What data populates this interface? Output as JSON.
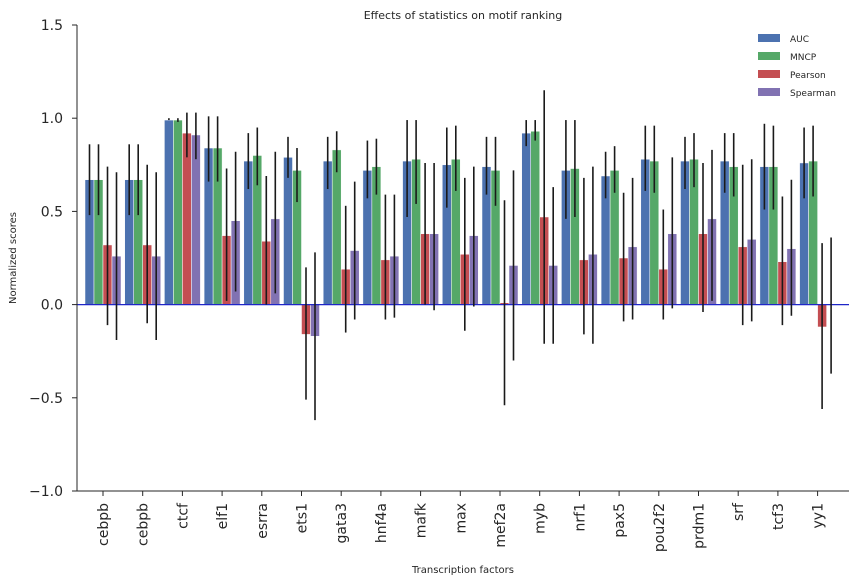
{
  "chart_data": {
    "type": "bar",
    "title": "Effects of statistics on motif ranking",
    "xlabel": "Transcription factors",
    "ylabel": "Normalized scores",
    "ylim": [
      -1.0,
      1.5
    ],
    "yticks": [
      "−1.0",
      "−0.5",
      "0.0",
      "0.5",
      "1.0",
      "1.5"
    ],
    "yticks_values": [
      -1.0,
      -0.5,
      0.0,
      0.5,
      1.0,
      1.5
    ],
    "grid": false,
    "legend_position": "top-right",
    "categories": [
      "cebpb",
      "cebpb",
      "ctcf",
      "elf1",
      "esrra",
      "ets1",
      "gata3",
      "hnf4a",
      "mafk",
      "max",
      "mef2a",
      "myb",
      "nrf1",
      "pax5",
      "pou2f2",
      "prdm1",
      "srf",
      "tcf3",
      "yy1"
    ],
    "series": [
      {
        "name": "AUC",
        "color": "#4c72b0",
        "values": [
          0.67,
          0.67,
          0.99,
          0.84,
          0.77,
          0.79,
          0.77,
          0.72,
          0.77,
          0.75,
          0.74,
          0.92,
          0.72,
          0.69,
          0.78,
          0.77,
          0.77,
          0.74,
          0.76
        ],
        "err_low": [
          0.48,
          0.48,
          0.99,
          0.66,
          0.62,
          0.68,
          0.62,
          0.57,
          0.47,
          0.52,
          0.59,
          0.85,
          0.46,
          0.57,
          0.61,
          0.62,
          0.6,
          0.51,
          0.57
        ],
        "err_high": [
          0.86,
          0.86,
          1.0,
          1.01,
          0.92,
          0.9,
          0.9,
          0.88,
          0.99,
          0.95,
          0.9,
          0.99,
          0.99,
          0.82,
          0.96,
          0.9,
          0.92,
          0.97,
          0.95
        ]
      },
      {
        "name": "MNCP",
        "color": "#55a868",
        "values": [
          0.67,
          0.67,
          0.99,
          0.84,
          0.8,
          0.72,
          0.83,
          0.74,
          0.78,
          0.78,
          0.72,
          0.93,
          0.73,
          0.72,
          0.77,
          0.78,
          0.74,
          0.74,
          0.77
        ],
        "err_low": [
          0.48,
          0.48,
          0.98,
          0.66,
          0.64,
          0.55,
          0.71,
          0.59,
          0.54,
          0.61,
          0.53,
          0.88,
          0.47,
          0.6,
          0.6,
          0.63,
          0.58,
          0.51,
          0.58
        ],
        "err_high": [
          0.86,
          0.86,
          1.0,
          1.01,
          0.95,
          0.84,
          0.93,
          0.89,
          0.99,
          0.96,
          0.9,
          0.99,
          0.99,
          0.85,
          0.96,
          0.92,
          0.92,
          0.96,
          0.96
        ]
      },
      {
        "name": "Pearson",
        "color": "#c44e52",
        "values": [
          0.32,
          0.32,
          0.92,
          0.37,
          0.34,
          -0.16,
          0.19,
          0.24,
          0.38,
          0.27,
          0.01,
          0.47,
          0.24,
          0.25,
          0.19,
          0.38,
          0.31,
          0.23,
          -0.12
        ],
        "err_low": [
          -0.11,
          -0.1,
          0.79,
          0.02,
          0.0,
          -0.51,
          -0.15,
          -0.08,
          0.0,
          -0.14,
          -0.54,
          -0.21,
          -0.16,
          -0.09,
          -0.08,
          -0.04,
          -0.11,
          -0.11,
          -0.56
        ],
        "err_high": [
          0.74,
          0.75,
          1.03,
          0.73,
          0.69,
          0.2,
          0.53,
          0.59,
          0.76,
          0.68,
          0.56,
          1.15,
          0.68,
          0.6,
          0.51,
          0.76,
          0.75,
          0.58,
          0.33
        ]
      },
      {
        "name": "Spearman",
        "color": "#8172b2",
        "values": [
          0.26,
          0.26,
          0.91,
          0.45,
          0.46,
          -0.17,
          0.29,
          0.26,
          0.38,
          0.37,
          0.21,
          0.21,
          0.27,
          0.31,
          0.38,
          0.46,
          0.35,
          0.3,
          null
        ],
        "err_low": [
          -0.19,
          -0.19,
          0.78,
          0.07,
          0.06,
          -0.62,
          -0.08,
          -0.07,
          -0.03,
          -0.01,
          -0.3,
          -0.21,
          -0.21,
          -0.08,
          -0.02,
          0.02,
          -0.09,
          -0.06,
          -0.37
        ],
        "err_high": [
          0.71,
          0.71,
          1.03,
          0.82,
          0.82,
          0.28,
          0.66,
          0.59,
          0.76,
          0.74,
          0.72,
          0.63,
          0.74,
          0.68,
          0.79,
          0.83,
          0.78,
          0.67,
          0.36
        ]
      }
    ]
  }
}
